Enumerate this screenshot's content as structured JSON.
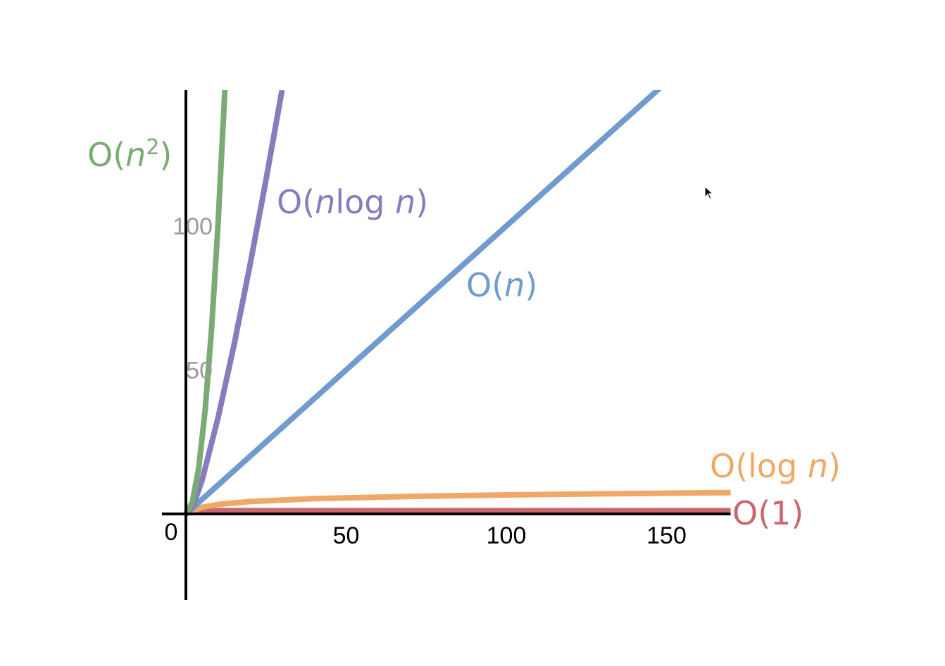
{
  "chart_data": {
    "type": "line",
    "x_ticks": [
      "50",
      "100",
      "150"
    ],
    "y_ticks": [
      "50",
      "100"
    ],
    "origin_label": "0",
    "xlim": [
      0,
      170
    ],
    "ylim": [
      -30,
      148
    ],
    "x_tick_values": [
      50,
      100,
      150
    ],
    "y_tick_values": [
      50,
      100
    ],
    "grid": false,
    "colors": {
      "axis": "#000000",
      "y_tick_text": "#9a9a9a",
      "x_tick_text": "#000000"
    },
    "series": [
      {
        "name": "O(1)",
        "name_parts": [
          {
            "t": "O(1)"
          }
        ],
        "formula": "1",
        "color": "#c9676b",
        "points": [
          [
            0,
            1
          ],
          [
            170,
            1
          ]
        ]
      },
      {
        "name": "O(log n)",
        "name_parts": [
          {
            "t": "O(log "
          },
          {
            "t": "n",
            "italic": true
          },
          {
            "t": ")"
          }
        ],
        "formula": "log2(n)",
        "color": "#f0a868",
        "points": [
          [
            0,
            0
          ],
          [
            2,
            1
          ],
          [
            5,
            2.3
          ],
          [
            10,
            3.3
          ],
          [
            20,
            4.3
          ],
          [
            40,
            5.3
          ],
          [
            70,
            6.1
          ],
          [
            100,
            6.6
          ],
          [
            130,
            7.0
          ],
          [
            170,
            7.4
          ]
        ]
      },
      {
        "name": "O(n)",
        "name_parts": [
          {
            "t": "O("
          },
          {
            "t": "n",
            "italic": true
          },
          {
            "t": ")"
          }
        ],
        "formula": "n",
        "color": "#6f9bcd",
        "points": [
          [
            0,
            0
          ],
          [
            148,
            148
          ]
        ]
      },
      {
        "name": "O(nlog n)",
        "name_parts": [
          {
            "t": "O("
          },
          {
            "t": "n",
            "italic": true
          },
          {
            "t": "log "
          },
          {
            "t": "n",
            "italic": true
          },
          {
            "t": ")"
          }
        ],
        "formula": "n*log2(n)",
        "color": "#8a7bbd",
        "points": [
          [
            0,
            0
          ],
          [
            2,
            2
          ],
          [
            5,
            11.6
          ],
          [
            10,
            33.2
          ],
          [
            15,
            58.6
          ],
          [
            20,
            86.4
          ],
          [
            25,
            116.1
          ],
          [
            30,
            147.2
          ]
        ]
      },
      {
        "name": "O(n²)",
        "name_parts": [
          {
            "t": "O("
          },
          {
            "t": "n",
            "italic": true
          },
          {
            "t": "2",
            "sup": true
          },
          {
            "t": ")"
          }
        ],
        "formula": "n^2",
        "color": "#7aab73",
        "points": [
          [
            0,
            0
          ],
          [
            2,
            4
          ],
          [
            4,
            16
          ],
          [
            6,
            36
          ],
          [
            8,
            64
          ],
          [
            10,
            100
          ],
          [
            12.2,
            148
          ]
        ]
      }
    ]
  }
}
